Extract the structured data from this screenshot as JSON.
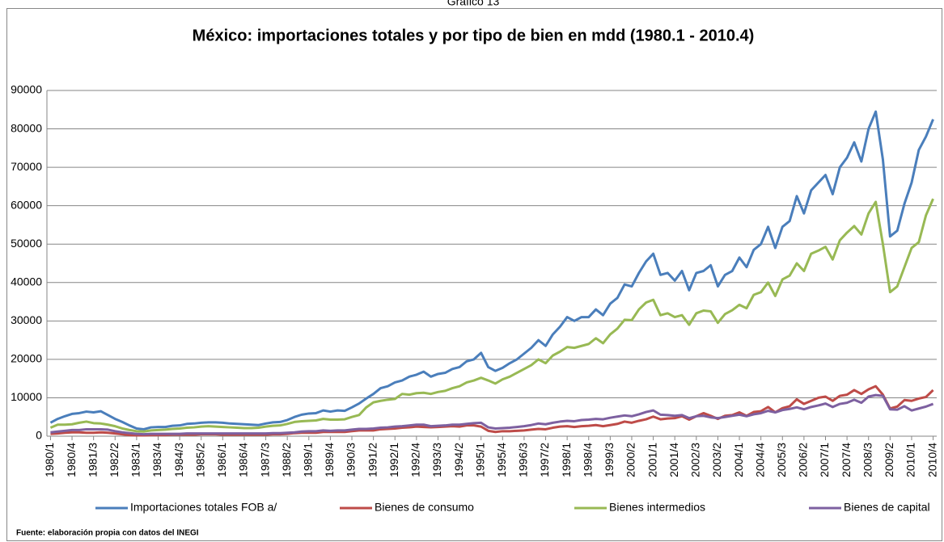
{
  "chart_data": {
    "type": "line",
    "header": "Gráfico 13",
    "title": "México: importaciones totales y por tipo de bien en mdd (1980.1 - 2010.4)",
    "source": "Fuente: elaboración propia con datos del INEGI",
    "categories": [
      "1980/1",
      null,
      null,
      "1980/4",
      null,
      null,
      "1981/3",
      null,
      null,
      "1982/2",
      null,
      null,
      "1983/1",
      null,
      null,
      "1983/4",
      null,
      null,
      "1984/3",
      null,
      null,
      "1985/2",
      null,
      null,
      "1986/1",
      null,
      null,
      "1986/4",
      null,
      null,
      "1987/3",
      null,
      null,
      "1988/2",
      null,
      null,
      "1989/1",
      null,
      null,
      "1989/4",
      null,
      null,
      "1990/3",
      null,
      null,
      "1991/2",
      null,
      null,
      "1992/1",
      null,
      null,
      "1992/4",
      null,
      null,
      "1993/3",
      null,
      null,
      "1994/2",
      null,
      null,
      "1995/1",
      null,
      null,
      "1995/4",
      null,
      null,
      "1996/3",
      null,
      null,
      "1997/2",
      null,
      null,
      "1998/1",
      null,
      null,
      "1998/4",
      null,
      null,
      "1999/3",
      null,
      null,
      "2000/2",
      null,
      null,
      "2001/1",
      null,
      null,
      "2001/4",
      null,
      null,
      "2002/3",
      null,
      null,
      "2003/2",
      null,
      null,
      "2004/1",
      null,
      null,
      "2004/4",
      null,
      null,
      "2005/3",
      null,
      null,
      "2006/2",
      null,
      null,
      "2007/1",
      null,
      null,
      "2007/4",
      null,
      null,
      "2008/3",
      null,
      null,
      "2009/2",
      null,
      null,
      "2010/1",
      null,
      null,
      "2010/4"
    ],
    "series": [
      {
        "name": "Importaciones totales FOB a/",
        "color": "#4a7ebb",
        "values": [
          3500,
          4500,
          5200,
          5800,
          6000,
          6400,
          6200,
          6500,
          5500,
          4500,
          3700,
          2800,
          2000,
          1800,
          2300,
          2400,
          2400,
          2700,
          2800,
          3200,
          3300,
          3500,
          3600,
          3600,
          3500,
          3300,
          3200,
          3100,
          3000,
          2900,
          3300,
          3600,
          3700,
          4200,
          5000,
          5600,
          5900,
          6000,
          6700,
          6400,
          6700,
          6600,
          7500,
          8500,
          9800,
          11000,
          12500,
          13000,
          14000,
          14500,
          15500,
          16000,
          16800,
          15500,
          16200,
          16500,
          17500,
          18000,
          19500,
          20000,
          21700,
          18000,
          17000,
          17800,
          19000,
          20000,
          21500,
          23000,
          25000,
          23500,
          26500,
          28500,
          31000,
          30000,
          31000,
          31000,
          33000,
          31500,
          34500,
          36000,
          39500,
          39000,
          42500,
          45500,
          47500,
          42000,
          42500,
          40500,
          43000,
          38000,
          42500,
          43000,
          44500,
          39000,
          42000,
          43000,
          46500,
          44000,
          48500,
          50000,
          54500,
          49000,
          54500,
          56000,
          62500,
          58000,
          64000,
          66000,
          68000,
          63000,
          70000,
          72500,
          76500,
          71500,
          80000,
          84500,
          72000,
          52000,
          53500,
          60500,
          66000,
          74500,
          78000,
          82500
        ]
      },
      {
        "name": "Bienes de consumo",
        "color": "#be4b48",
        "values": [
          600,
          700,
          900,
          1000,
          1000,
          900,
          900,
          1000,
          900,
          700,
          500,
          300,
          200,
          200,
          300,
          300,
          300,
          400,
          400,
          400,
          400,
          500,
          500,
          500,
          400,
          400,
          400,
          400,
          400,
          400,
          400,
          500,
          500,
          600,
          800,
          900,
          900,
          900,
          1100,
          1100,
          1100,
          1100,
          1300,
          1500,
          1500,
          1500,
          1800,
          1900,
          2000,
          2200,
          2300,
          2500,
          2400,
          2300,
          2400,
          2500,
          2600,
          2500,
          2800,
          2800,
          2500,
          1400,
          1100,
          1300,
          1300,
          1400,
          1500,
          1700,
          1900,
          1800,
          2200,
          2500,
          2600,
          2400,
          2600,
          2700,
          2900,
          2600,
          2900,
          3200,
          3800,
          3500,
          4000,
          4400,
          5100,
          4400,
          4600,
          4700,
          5200,
          4300,
          5200,
          6000,
          5300,
          4500,
          5300,
          5500,
          6200,
          5300,
          6300,
          6500,
          7600,
          6200,
          7300,
          7800,
          9600,
          8400,
          9200,
          10000,
          10300,
          9200,
          10500,
          10800,
          12000,
          11000,
          12200,
          13000,
          10800,
          7200,
          7700,
          9400,
          9200,
          9800,
          10200,
          12000
        ]
      },
      {
        "name": "Bienes intermedios",
        "color": "#98b954",
        "values": [
          2200,
          3000,
          3000,
          3100,
          3500,
          3800,
          3400,
          3300,
          3000,
          2600,
          2000,
          1600,
          1300,
          1200,
          1500,
          1600,
          1700,
          1900,
          2000,
          2200,
          2300,
          2500,
          2600,
          2500,
          2400,
          2300,
          2200,
          2100,
          2100,
          2200,
          2500,
          2700,
          2800,
          3200,
          3700,
          3900,
          4000,
          4100,
          4500,
          4300,
          4300,
          4400,
          5000,
          5500,
          7500,
          8800,
          9200,
          9500,
          9700,
          11000,
          10800,
          11200,
          11300,
          11000,
          11500,
          11800,
          12500,
          13000,
          14000,
          14500,
          15200,
          14500,
          13700,
          14800,
          15500,
          16500,
          17500,
          18500,
          20000,
          19000,
          21000,
          22000,
          23200,
          23000,
          23500,
          24000,
          25500,
          24200,
          26500,
          28000,
          30300,
          30200,
          33000,
          34800,
          35500,
          31500,
          32000,
          31000,
          31500,
          29000,
          32000,
          32700,
          32500,
          29500,
          31800,
          32800,
          34200,
          33300,
          36800,
          37500,
          40000,
          36500,
          40800,
          41800,
          45000,
          43000,
          47500,
          48300,
          49300,
          46000,
          51000,
          53000,
          54700,
          52500,
          58000,
          61000,
          50000,
          37500,
          39000,
          44000,
          49000,
          50500,
          57500,
          61800
        ]
      },
      {
        "name": "Bienes de capital",
        "color": "#7d60a0",
        "values": [
          1000,
          1200,
          1400,
          1600,
          1600,
          1800,
          1800,
          1800,
          1700,
          1300,
          1000,
          800,
          600,
          500,
          600,
          600,
          600,
          600,
          600,
          700,
          700,
          700,
          700,
          700,
          700,
          700,
          700,
          700,
          700,
          700,
          700,
          800,
          800,
          900,
          1000,
          1200,
          1300,
          1300,
          1500,
          1400,
          1500,
          1500,
          1700,
          1900,
          1900,
          2000,
          2200,
          2300,
          2500,
          2600,
          2800,
          3000,
          3000,
          2600,
          2700,
          2800,
          3000,
          3000,
          3200,
          3400,
          3500,
          2300,
          2000,
          2100,
          2200,
          2400,
          2600,
          2900,
          3300,
          3100,
          3500,
          3800,
          4000,
          3900,
          4200,
          4300,
          4500,
          4400,
          4800,
          5100,
          5400,
          5200,
          5700,
          6300,
          6700,
          5600,
          5500,
          5300,
          5500,
          4700,
          5200,
          5300,
          4900,
          4700,
          5000,
          5300,
          5600,
          5200,
          5700,
          6000,
          6600,
          6200,
          6800,
          7100,
          7500,
          7000,
          7600,
          8000,
          8500,
          7600,
          8400,
          8700,
          9500,
          8700,
          10300,
          10700,
          10500,
          7000,
          6900,
          7800,
          6700,
          7200,
          7700,
          8400
        ]
      }
    ],
    "ylim": [
      0,
      90000
    ],
    "yticks": [
      0,
      10000,
      20000,
      30000,
      40000,
      50000,
      60000,
      70000,
      80000,
      90000
    ],
    "grid": true,
    "legend": "bottom"
  }
}
